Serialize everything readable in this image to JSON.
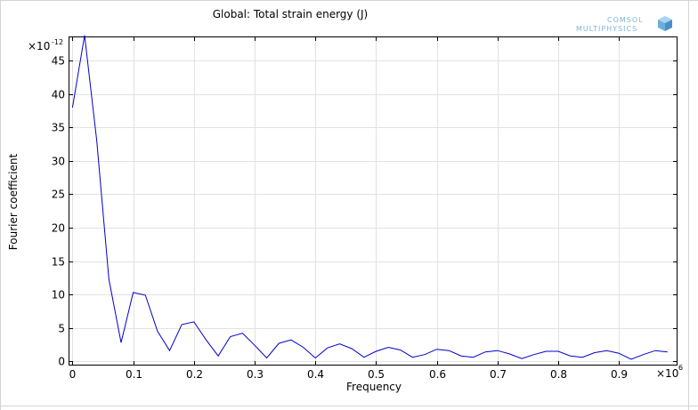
{
  "window": {
    "frame_color": "#d4d4d4"
  },
  "logo": {
    "line1": "COMSOL",
    "line2": "MULTIPHYSICS",
    "color": "#7fb4d8",
    "icon": "cube-icon"
  },
  "chart_data": {
    "type": "line",
    "title": "Global: Total strain energy (J)",
    "xlabel": "Frequency",
    "ylabel": "Fourier coefficient",
    "x_exponent_base": "×10",
    "x_exponent": "6",
    "y_exponent_base": "×10",
    "y_exponent": "-12",
    "xlim": [
      -0.005,
      0.995
    ],
    "ylim": [
      -0.5,
      48.5
    ],
    "xticks": [
      0,
      0.1,
      0.2,
      0.3,
      0.4,
      0.5,
      0.6,
      0.7,
      0.8,
      0.9
    ],
    "xtick_labels": [
      "0",
      "0.1",
      "0.2",
      "0.3",
      "0.4",
      "0.5",
      "0.6",
      "0.7",
      "0.8",
      "0.9"
    ],
    "yticks": [
      0,
      5,
      10,
      15,
      20,
      25,
      30,
      35,
      40,
      45
    ],
    "ytick_labels": [
      "0",
      "5",
      "10",
      "15",
      "20",
      "25",
      "30",
      "35",
      "40",
      "45"
    ],
    "grid": true,
    "series": [
      {
        "color": "#0000cc",
        "x": [
          0,
          0.02,
          0.04,
          0.06,
          0.08,
          0.1,
          0.12,
          0.14,
          0.16,
          0.18,
          0.2,
          0.22,
          0.24,
          0.26,
          0.28,
          0.3,
          0.32,
          0.34,
          0.36,
          0.38,
          0.4,
          0.42,
          0.44,
          0.46,
          0.48,
          0.5,
          0.52,
          0.54,
          0.56,
          0.58,
          0.6,
          0.62,
          0.64,
          0.66,
          0.68,
          0.7,
          0.72,
          0.74,
          0.76,
          0.78,
          0.8,
          0.82,
          0.84,
          0.86,
          0.88,
          0.9,
          0.92,
          0.94,
          0.96,
          0.98
        ],
        "y": [
          38.0,
          48.8,
          33.0,
          12.3,
          2.8,
          10.3,
          9.9,
          4.5,
          1.6,
          5.5,
          5.9,
          3.2,
          0.8,
          3.7,
          4.2,
          2.4,
          0.5,
          2.7,
          3.2,
          2.1,
          0.5,
          2.0,
          2.6,
          1.9,
          0.6,
          1.5,
          2.1,
          1.7,
          0.6,
          1.0,
          1.8,
          1.6,
          0.8,
          0.6,
          1.4,
          1.6,
          1.1,
          0.4,
          1.0,
          1.5,
          1.5,
          0.8,
          0.6,
          1.3,
          1.6,
          1.2,
          0.3,
          1.0,
          1.6,
          1.4
        ]
      }
    ]
  }
}
